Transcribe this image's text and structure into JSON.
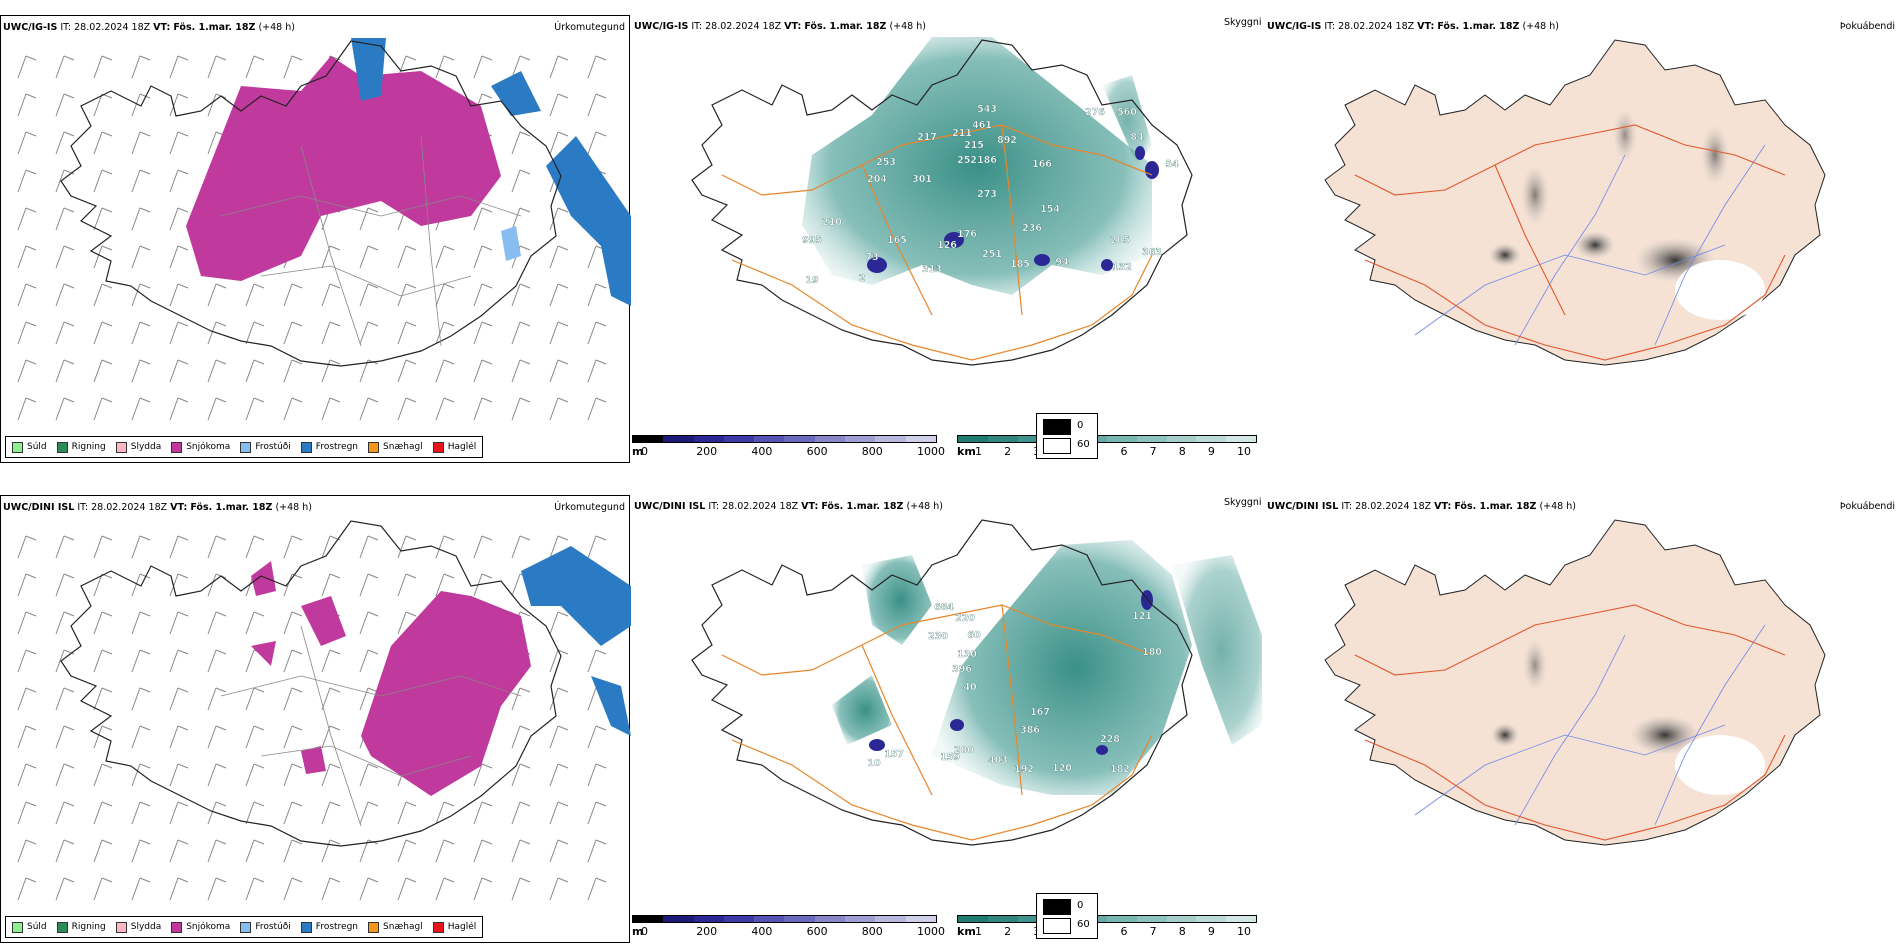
{
  "rows": [
    {
      "model": "UWC/IG-IS",
      "it_label": "IT:",
      "it_value": "28.02.2024 18Z",
      "vt_label": "VT:",
      "vt_value": "Fös. 1.mar. 18Z",
      "lead": "(+48 h)",
      "cloud_labels": [
        "543",
        "461",
        "892",
        "217",
        "211",
        "215",
        "276",
        "560",
        "84",
        "253",
        "252",
        "186",
        "166",
        "54",
        "204",
        "301",
        "273",
        "210",
        "154",
        "236",
        "995",
        "165",
        "176",
        "126",
        "251",
        "185",
        "94",
        "205",
        "363",
        "73",
        "313",
        "132",
        "2",
        "19"
      ],
      "cloud_label_colors": [
        "white",
        "white",
        "white",
        "white",
        "white",
        "white",
        "white",
        "white",
        "white",
        "white",
        "white",
        "white",
        "white",
        "white",
        "white",
        "white",
        "white",
        "white",
        "white",
        "white",
        "white",
        "white",
        "white",
        "white",
        "white",
        "white",
        "white",
        "white",
        "white",
        "white",
        "white",
        "white",
        "white",
        "white"
      ]
    },
    {
      "model": "UWC/DINI ISL",
      "it_label": "IT:",
      "it_value": "28.02.2024 18Z",
      "vt_label": "VT:",
      "vt_value": "Fös. 1.mar. 18Z",
      "lead": "(+48 h)",
      "cloud_labels": [
        "684",
        "220",
        "230",
        "60",
        "130",
        "396",
        "40",
        "121",
        "180",
        "167",
        "386",
        "228",
        "159",
        "200",
        "403",
        "192",
        "120",
        "182",
        "10",
        "157"
      ],
      "cloud_label_colors": []
    }
  ],
  "panel_types": {
    "precip": "Úrkomutegund",
    "cloud": "Skyggni",
    "fog": "Þokuábendi"
  },
  "precip_legend": [
    {
      "label": "Súld",
      "color": "#90ee90"
    },
    {
      "label": "Rigning",
      "color": "#2e8b57"
    },
    {
      "label": "Slydda",
      "color": "#ffb6c1"
    },
    {
      "label": "Snjókoma",
      "color": "#c0399d"
    },
    {
      "label": "Frostúði",
      "color": "#87bdf0"
    },
    {
      "label": "Frostregn",
      "color": "#2b7bc4"
    },
    {
      "label": "Snæhagl",
      "color": "#f2961c"
    },
    {
      "label": "Haglél",
      "color": "#e8141c"
    }
  ],
  "cloudbase_scale": {
    "unit": "m",
    "ticks": [
      "0",
      "200",
      "400",
      "600",
      "800",
      "1000"
    ],
    "colors": [
      "#000000",
      "#1d1a78",
      "#2b2895",
      "#3d3aa8",
      "#5552b4",
      "#6d6bbf",
      "#8886c9",
      "#a09fd4",
      "#b9b8df",
      "#d0d0ea"
    ]
  },
  "visibility_scale": {
    "unit": "km",
    "ticks": [
      "1",
      "2",
      "3",
      "4",
      "5",
      "6",
      "7",
      "8",
      "9",
      "10"
    ],
    "colors": [
      "#1f7a72",
      "#2f8780",
      "#40948d",
      "#529f99",
      "#65aba6",
      "#79b7b2",
      "#8ec3bf",
      "#a4cfcb",
      "#badbd8",
      "#d2e8e6"
    ]
  },
  "fog_legend": [
    {
      "value": "0",
      "color": "#000000"
    },
    {
      "value": "60",
      "color": "#ffffff"
    }
  ],
  "colors": {
    "snow": "#c0399d",
    "freezing_rain": "#2b7bc4",
    "freezing_drizzle": "#87bdf0",
    "teal": "#3b9a8e",
    "road": "#e8862a",
    "fog_land": "#f5e2d5",
    "fog_road": "#e2582c",
    "river": "#6f86e8"
  }
}
